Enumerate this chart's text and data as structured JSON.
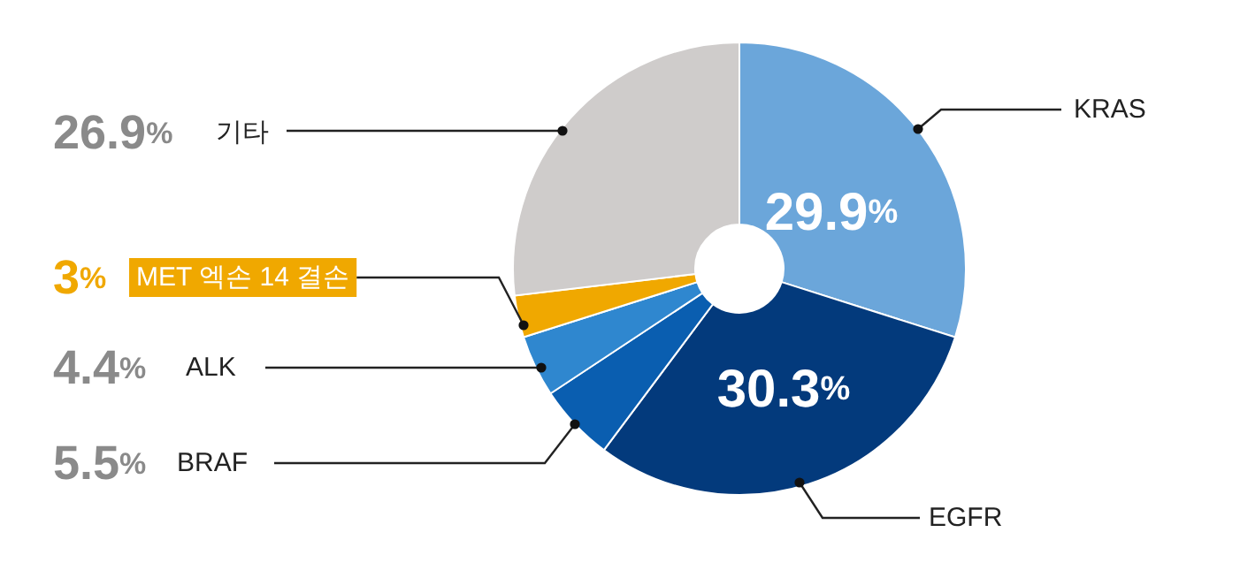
{
  "chart_data": {
    "type": "donut",
    "categories": [
      "KRAS",
      "EGFR",
      "BRAF",
      "ALK",
      "MET 엑손 14 결손",
      "기타"
    ],
    "values": [
      29.9,
      30.3,
      5.5,
      4.4,
      3,
      26.9
    ],
    "colors": [
      "#6ba6da",
      "#033a7c",
      "#0a5eb0",
      "#2f87cf",
      "#f0a800",
      "#cfcccb"
    ],
    "value_labels": [
      "29.9%",
      "30.3%",
      "5.5%",
      "4.4%",
      "3%",
      "26.9%"
    ]
  }
}
